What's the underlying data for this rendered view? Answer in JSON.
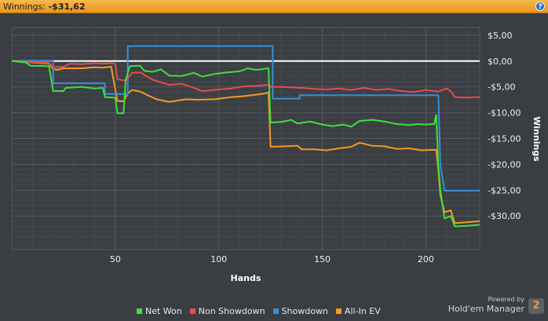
{
  "header": {
    "label": "Winnings:",
    "value": "-$31,62",
    "help_icon": "?"
  },
  "chart_data": {
    "type": "line",
    "xlabel": "Hands",
    "ylabel": "Winnings",
    "xlim": [
      0,
      226
    ],
    "ylim": [
      -36.5,
      6.5
    ],
    "x_ticks": [
      50,
      100,
      150,
      200
    ],
    "y_ticks": [
      5,
      0,
      -5,
      -10,
      -15,
      -20,
      -25,
      -30
    ],
    "y_tick_labels": [
      "$5,00",
      "$0,00",
      "-$5,00",
      "-$10,00",
      "-$15,00",
      "-$20,00",
      "-$25,00",
      "-$30,00"
    ],
    "grid": true,
    "zero_line": true,
    "legend_position": "bottom",
    "series": [
      {
        "name": "Net Won",
        "color": "#3ee03e",
        "points": [
          [
            0,
            0
          ],
          [
            7,
            -0.3
          ],
          [
            9,
            -0.9
          ],
          [
            18,
            -1
          ],
          [
            20,
            -5.8
          ],
          [
            25,
            -5.8
          ],
          [
            26,
            -5.2
          ],
          [
            34,
            -5
          ],
          [
            40,
            -5.3
          ],
          [
            44,
            -5.2
          ],
          [
            45,
            -7
          ],
          [
            50,
            -7.1
          ],
          [
            51,
            -10.1
          ],
          [
            54,
            -10.1
          ],
          [
            55,
            -3.7
          ],
          [
            57,
            -1
          ],
          [
            62,
            -0.9
          ],
          [
            64,
            -1.9
          ],
          [
            68,
            -2.1
          ],
          [
            72,
            -1.6
          ],
          [
            76,
            -2.8
          ],
          [
            82,
            -2.9
          ],
          [
            88,
            -2.3
          ],
          [
            92,
            -3
          ],
          [
            98,
            -2.5
          ],
          [
            104,
            -2.2
          ],
          [
            110,
            -2
          ],
          [
            114,
            -1.4
          ],
          [
            118,
            -1.7
          ],
          [
            122,
            -1.5
          ],
          [
            124,
            -1.4
          ],
          [
            125,
            -11.9
          ],
          [
            130,
            -11.8
          ],
          [
            135,
            -11.4
          ],
          [
            138,
            -12.1
          ],
          [
            144,
            -11.7
          ],
          [
            150,
            -12.3
          ],
          [
            155,
            -12.6
          ],
          [
            160,
            -12.3
          ],
          [
            164,
            -12.7
          ],
          [
            168,
            -11.6
          ],
          [
            174,
            -11.4
          ],
          [
            180,
            -11.7
          ],
          [
            186,
            -12.2
          ],
          [
            192,
            -12.4
          ],
          [
            196,
            -12.2
          ],
          [
            200,
            -12.3
          ],
          [
            204,
            -12.2
          ],
          [
            205,
            -10.4
          ],
          [
            206,
            -20
          ],
          [
            207,
            -25
          ],
          [
            209,
            -30.5
          ],
          [
            212,
            -30
          ],
          [
            214,
            -32
          ],
          [
            220,
            -31.9
          ],
          [
            226,
            -31.7
          ]
        ]
      },
      {
        "name": "Non Showdown",
        "color": "#e84b4b",
        "points": [
          [
            0,
            0
          ],
          [
            18,
            -0.4
          ],
          [
            20,
            -1.2
          ],
          [
            25,
            -1.1
          ],
          [
            28,
            -0.5
          ],
          [
            34,
            -0.6
          ],
          [
            40,
            -0.4
          ],
          [
            44,
            -0.5
          ],
          [
            48,
            -0.4
          ],
          [
            50,
            -0.6
          ],
          [
            51,
            -3.5
          ],
          [
            55,
            -3.8
          ],
          [
            58,
            -2.3
          ],
          [
            62,
            -2.2
          ],
          [
            68,
            -3.6
          ],
          [
            72,
            -4.1
          ],
          [
            76,
            -4.6
          ],
          [
            82,
            -4.4
          ],
          [
            88,
            -5.2
          ],
          [
            92,
            -5.8
          ],
          [
            100,
            -5.5
          ],
          [
            106,
            -5.3
          ],
          [
            112,
            -4.9
          ],
          [
            118,
            -4.8
          ],
          [
            124,
            -4.6
          ],
          [
            125,
            -5
          ],
          [
            130,
            -5
          ],
          [
            140,
            -5.2
          ],
          [
            146,
            -5.4
          ],
          [
            152,
            -5.5
          ],
          [
            158,
            -5.3
          ],
          [
            164,
            -5.6
          ],
          [
            170,
            -5.2
          ],
          [
            176,
            -5.6
          ],
          [
            182,
            -5.4
          ],
          [
            188,
            -5.8
          ],
          [
            194,
            -6
          ],
          [
            200,
            -5.6
          ],
          [
            206,
            -5.9
          ],
          [
            210,
            -5.3
          ],
          [
            212,
            -5.8
          ],
          [
            214,
            -7
          ],
          [
            220,
            -7.1
          ],
          [
            224,
            -7
          ],
          [
            226,
            -7
          ]
        ]
      },
      {
        "name": "Showdown",
        "color": "#3a8ed4",
        "points": [
          [
            0,
            0
          ],
          [
            20,
            0
          ],
          [
            20,
            -4.3
          ],
          [
            45,
            -4.3
          ],
          [
            45,
            -6.4
          ],
          [
            56,
            -6.4
          ],
          [
            56,
            2.9
          ],
          [
            126,
            2.9
          ],
          [
            126,
            -7.3
          ],
          [
            139,
            -7.3
          ],
          [
            139,
            -6.6
          ],
          [
            206,
            -6.6
          ],
          [
            207,
            -20
          ],
          [
            209,
            -25.1
          ],
          [
            226,
            -25.1
          ]
        ]
      },
      {
        "name": "All-In EV",
        "color": "#f39a24",
        "points": [
          [
            0,
            0
          ],
          [
            18,
            -0.5
          ],
          [
            20,
            -1.6
          ],
          [
            22,
            -1.7
          ],
          [
            25,
            -1.4
          ],
          [
            34,
            -1.4
          ],
          [
            40,
            -1.2
          ],
          [
            44,
            -1.3
          ],
          [
            48,
            -1.1
          ],
          [
            51,
            -7.7
          ],
          [
            54,
            -7.8
          ],
          [
            56,
            -6.3
          ],
          [
            58,
            -5.6
          ],
          [
            62,
            -5.9
          ],
          [
            66,
            -6.7
          ],
          [
            70,
            -7.4
          ],
          [
            76,
            -7.9
          ],
          [
            84,
            -7.4
          ],
          [
            90,
            -7.5
          ],
          [
            98,
            -7.4
          ],
          [
            106,
            -7
          ],
          [
            112,
            -6.8
          ],
          [
            118,
            -6.5
          ],
          [
            122,
            -6.3
          ],
          [
            124,
            -6.1
          ],
          [
            125,
            -16.6
          ],
          [
            132,
            -16.5
          ],
          [
            138,
            -16.4
          ],
          [
            140,
            -17.1
          ],
          [
            146,
            -17.1
          ],
          [
            152,
            -17.3
          ],
          [
            158,
            -16.9
          ],
          [
            164,
            -16.6
          ],
          [
            168,
            -15.8
          ],
          [
            174,
            -16.4
          ],
          [
            180,
            -16.5
          ],
          [
            186,
            -17
          ],
          [
            192,
            -16.9
          ],
          [
            198,
            -17.3
          ],
          [
            202,
            -17.2
          ],
          [
            205,
            -17.2
          ],
          [
            206,
            -21
          ],
          [
            207,
            -26
          ],
          [
            209,
            -29.3
          ],
          [
            212,
            -28.9
          ],
          [
            214,
            -31.4
          ],
          [
            220,
            -31.2
          ],
          [
            226,
            -31
          ]
        ]
      }
    ],
    "legend": [
      {
        "name": "Net Won",
        "color": "#3ee03e"
      },
      {
        "name": "Non Showdown",
        "color": "#e84b4b"
      },
      {
        "name": "Showdown",
        "color": "#3a8ed4"
      },
      {
        "name": "All-In EV",
        "color": "#f39a24"
      }
    ]
  },
  "branding": {
    "powered_by": "Powered by",
    "product": "Hold'em Manager",
    "badge": "2"
  }
}
